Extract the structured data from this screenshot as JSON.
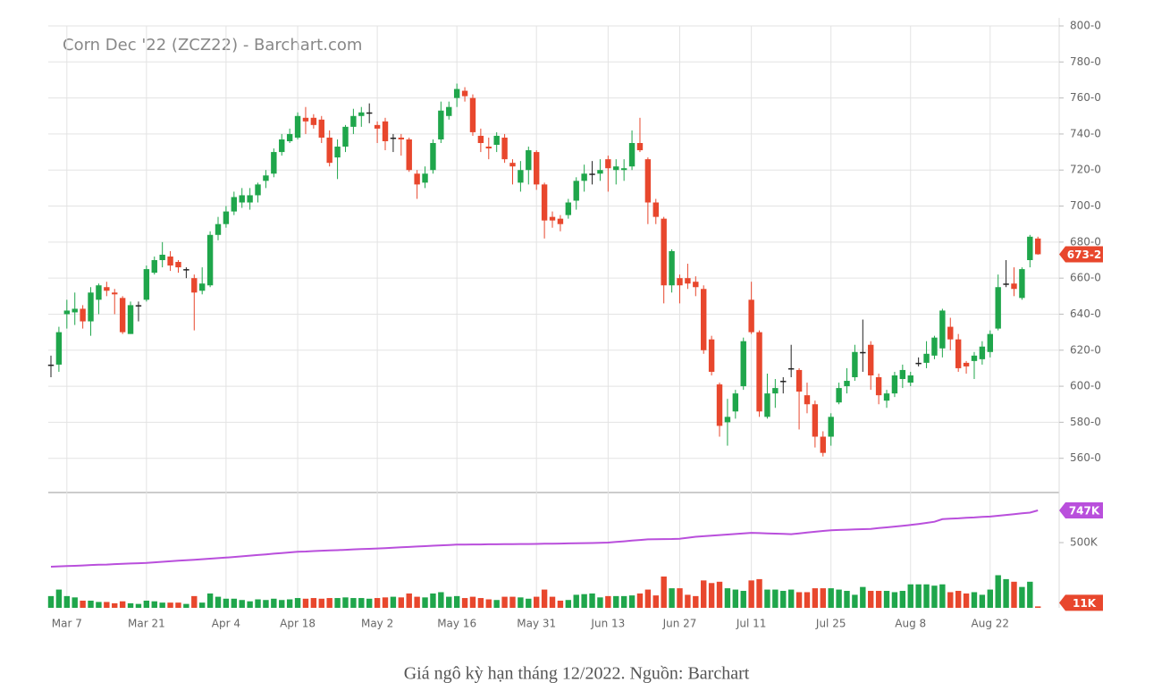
{
  "chart_data": {
    "type": "candlestick",
    "title": "Corn Dec '22 (ZCZ22) - Barchart.com",
    "caption": "Giá ngô kỳ hạn tháng 12/2022. Nguồn: Barchart",
    "categories": [
      null,
      null,
      "Mar 7",
      null,
      null,
      null,
      null,
      null,
      null,
      null,
      null,
      null,
      "Mar 21",
      null,
      null,
      null,
      null,
      null,
      null,
      null,
      null,
      null,
      "Apr 4",
      null,
      null,
      null,
      null,
      null,
      null,
      null,
      null,
      "Apr 18",
      null,
      null,
      null,
      null,
      null,
      null,
      null,
      null,
      null,
      "May 2",
      null,
      null,
      null,
      null,
      null,
      null,
      null,
      null,
      null,
      "May 16",
      null,
      null,
      null,
      null,
      null,
      null,
      null,
      null,
      null,
      "May 31",
      null,
      null,
      null,
      null,
      null,
      null,
      null,
      null,
      "Jun 13",
      null,
      null,
      null,
      null,
      null,
      null,
      null,
      null,
      "Jun 27",
      null,
      null,
      null,
      null,
      null,
      null,
      null,
      null,
      "Jul 11",
      null,
      null,
      null,
      null,
      null,
      null,
      null,
      null,
      null,
      "Jul 25",
      null,
      null,
      null,
      null,
      null,
      null,
      null,
      null,
      null,
      "Aug 8",
      null,
      null,
      null,
      null,
      null,
      null,
      null,
      null,
      null,
      "Aug 22",
      null,
      null,
      null,
      null,
      null,
      null
    ],
    "open": [
      612,
      612,
      640,
      641,
      643,
      636,
      648,
      655,
      652,
      649,
      629,
      645,
      648,
      663,
      670,
      672,
      669,
      665,
      660,
      653,
      656,
      684,
      690,
      697,
      702,
      702,
      706,
      714,
      718,
      730,
      736,
      738,
      749,
      749,
      748,
      738,
      727,
      733,
      744,
      750,
      752,
      745,
      747,
      738,
      738,
      737,
      718,
      713,
      720,
      737,
      750,
      760,
      764,
      760,
      739,
      733,
      734,
      738,
      724,
      713,
      720,
      730,
      712,
      694,
      693,
      695,
      703,
      714,
      718,
      718,
      726,
      720,
      720,
      722,
      735,
      726,
      702,
      693,
      656,
      660,
      660,
      658,
      654,
      626,
      601,
      580,
      586,
      600,
      648,
      630,
      583,
      596,
      603,
      610,
      609,
      595,
      590,
      572,
      572,
      591,
      600,
      605,
      619,
      623,
      605,
      592,
      596,
      604,
      602,
      613,
      613,
      617,
      621,
      633,
      626,
      613,
      614,
      615,
      619,
      632,
      657,
      657,
      649,
      670,
      682
    ],
    "high": [
      617,
      633,
      648,
      652,
      645,
      655,
      657,
      658,
      654,
      650,
      647,
      647,
      667,
      672,
      680,
      675,
      670,
      666,
      662,
      666,
      686,
      694,
      700,
      708,
      710,
      710,
      713,
      720,
      732,
      740,
      743,
      752,
      755,
      751,
      750,
      742,
      737,
      745,
      754,
      755,
      757,
      747,
      749,
      740,
      740,
      738,
      720,
      722,
      737,
      758,
      758,
      768,
      766,
      762,
      743,
      738,
      741,
      740,
      726,
      725,
      733,
      731,
      713,
      697,
      695,
      704,
      716,
      723,
      725,
      726,
      728,
      726,
      726,
      742,
      749,
      727,
      704,
      694,
      676,
      662,
      668,
      661,
      656,
      628,
      602,
      593,
      598,
      627,
      658,
      631,
      607,
      604,
      605,
      623,
      610,
      602,
      592,
      575,
      585,
      602,
      610,
      623,
      637,
      625,
      607,
      598,
      608,
      612,
      608,
      616,
      625,
      628,
      643,
      638,
      629,
      614,
      619,
      625,
      631,
      662,
      670,
      666,
      666,
      684,
      683
    ],
    "low": [
      605,
      608,
      632,
      634,
      632,
      628,
      640,
      650,
      640,
      629,
      629,
      636,
      647,
      662,
      666,
      664,
      663,
      660,
      631,
      651,
      655,
      681,
      688,
      695,
      699,
      698,
      702,
      710,
      716,
      728,
      735,
      737,
      740,
      743,
      735,
      722,
      715,
      730,
      740,
      744,
      746,
      735,
      731,
      730,
      728,
      719,
      704,
      710,
      718,
      735,
      748,
      755,
      758,
      739,
      730,
      726,
      730,
      724,
      712,
      708,
      712,
      709,
      682,
      688,
      686,
      693,
      698,
      708,
      712,
      714,
      708,
      712,
      714,
      720,
      730,
      690,
      690,
      646,
      652,
      646,
      654,
      650,
      618,
      606,
      572,
      567,
      582,
      598,
      629,
      583,
      582,
      588,
      596,
      605,
      576,
      585,
      566,
      561,
      567,
      590,
      596,
      603,
      608,
      598,
      590,
      588,
      594,
      599,
      600,
      611,
      610,
      615,
      616,
      620,
      608,
      607,
      604,
      612,
      616,
      631,
      655,
      650,
      648,
      666,
      673
    ],
    "close": [
      612,
      630,
      642,
      643,
      636,
      652,
      656,
      653,
      651,
      630,
      645,
      645,
      665,
      670,
      673,
      667,
      666,
      665,
      652,
      657,
      684,
      690,
      697,
      705,
      706,
      706,
      712,
      717,
      730,
      737,
      740,
      750,
      747,
      745,
      738,
      724,
      733,
      744,
      750,
      752,
      752,
      743,
      736,
      738,
      737,
      720,
      712,
      718,
      735,
      753,
      755,
      765,
      761,
      741,
      735,
      732,
      739,
      726,
      722,
      720,
      731,
      712,
      692,
      692,
      690,
      702,
      714,
      718,
      718,
      720,
      721,
      722,
      721,
      735,
      731,
      702,
      694,
      656,
      675,
      656,
      657,
      655,
      620,
      608,
      578,
      583,
      596,
      625,
      630,
      586,
      596,
      599,
      603,
      610,
      597,
      590,
      572,
      563,
      583,
      599,
      603,
      619,
      619,
      606,
      595,
      596,
      606,
      609,
      606,
      613,
      618,
      627,
      642,
      626,
      610,
      611,
      617,
      622,
      629,
      655,
      657,
      654,
      665,
      683,
      673.25
    ],
    "last_price": {
      "value": 673.25,
      "label": "673-2"
    },
    "ylim": [
      541,
      800
    ],
    "yticks": [
      {
        "value": 560,
        "label": "560-0"
      },
      {
        "value": 580,
        "label": "580-0"
      },
      {
        "value": 600,
        "label": "600-0"
      },
      {
        "value": 620,
        "label": "620-0"
      },
      {
        "value": 640,
        "label": "640-0"
      },
      {
        "value": 660,
        "label": "660-0"
      },
      {
        "value": 680,
        "label": "680-0"
      },
      {
        "value": 700,
        "label": "700-0"
      },
      {
        "value": 720,
        "label": "720-0"
      },
      {
        "value": 740,
        "label": "740-0"
      },
      {
        "value": 760,
        "label": "760-0"
      },
      {
        "value": 780,
        "label": "780-0"
      },
      {
        "value": 800,
        "label": "800-0"
      }
    ],
    "volume": [
      90,
      140,
      90,
      80,
      55,
      55,
      45,
      45,
      35,
      50,
      35,
      30,
      55,
      50,
      40,
      40,
      40,
      30,
      90,
      40,
      110,
      85,
      70,
      70,
      60,
      50,
      65,
      60,
      70,
      60,
      65,
      75,
      70,
      75,
      70,
      75,
      75,
      80,
      75,
      75,
      70,
      75,
      80,
      85,
      80,
      110,
      85,
      80,
      110,
      120,
      85,
      90,
      75,
      85,
      75,
      65,
      60,
      85,
      85,
      80,
      70,
      85,
      140,
      85,
      55,
      60,
      100,
      105,
      110,
      80,
      90,
      90,
      90,
      95,
      110,
      140,
      95,
      240,
      150,
      150,
      100,
      90,
      210,
      190,
      200,
      150,
      140,
      130,
      210,
      220,
      140,
      140,
      130,
      140,
      120,
      120,
      150,
      150,
      150,
      140,
      130,
      100,
      160,
      130,
      130,
      130,
      120,
      130,
      180,
      180,
      180,
      170,
      180,
      120,
      130,
      110,
      120,
      100,
      140,
      250,
      220,
      200,
      160,
      200,
      11
    ],
    "volume_label": {
      "value": 11,
      "label": "11K"
    },
    "open_interest": [
      315,
      318,
      320,
      322,
      325,
      328,
      330,
      332,
      335,
      338,
      340,
      342,
      345,
      349,
      353,
      357,
      361,
      365,
      369,
      373,
      377,
      381,
      385,
      390,
      395,
      400,
      405,
      410,
      415,
      420,
      425,
      430,
      432,
      435,
      438,
      440,
      442,
      445,
      448,
      450,
      452,
      455,
      458,
      461,
      464,
      467,
      470,
      473,
      476,
      479,
      482,
      485,
      485,
      486,
      486,
      487,
      487,
      488,
      488,
      489,
      489,
      490,
      491,
      492,
      493,
      494,
      495,
      496,
      497,
      498,
      500,
      505,
      510,
      515,
      520,
      525,
      526,
      527,
      528,
      530,
      537,
      545,
      549,
      553,
      558,
      562,
      566,
      571,
      575,
      573,
      571,
      569,
      567,
      565,
      571,
      577,
      583,
      589,
      595,
      597,
      599,
      601,
      603,
      605,
      611,
      617,
      623,
      629,
      635,
      643,
      651,
      660,
      680,
      683,
      686,
      690,
      693,
      697,
      700,
      706,
      712,
      718,
      724,
      730,
      747
    ],
    "open_interest_label": {
      "value": 747,
      "label": "747K"
    },
    "open_interest_color": "#b94fdc",
    "volume_ylim": [
      0,
      884
    ],
    "volume_yticks": [
      {
        "value": 500,
        "label": "500K"
      }
    ],
    "up_color": "#1fa64b",
    "down_color": "#e8472d",
    "flat_color": "#222222",
    "grid": true
  }
}
